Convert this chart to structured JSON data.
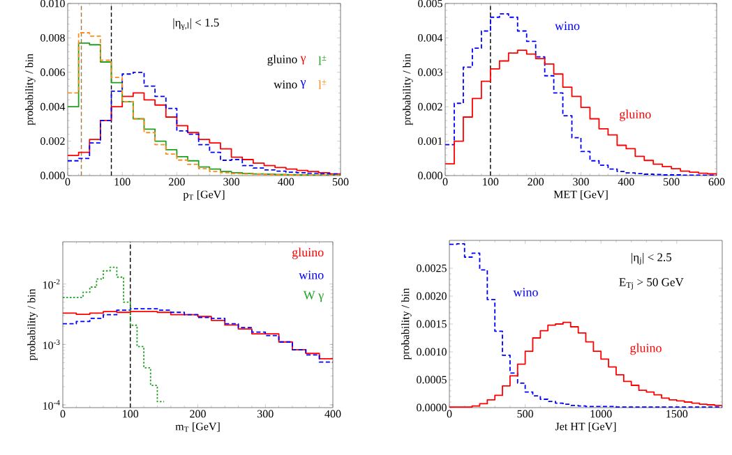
{
  "chart_data": [
    {
      "type": "histogram",
      "xlabel": "p$_{T}$ [GeV]",
      "ylabel": "probability / bin",
      "annotations": [
        "|η$_{γ,l}$| < 1.5",
        "gluino",
        "wino"
      ],
      "bins": [
        0,
        20,
        40,
        60,
        80,
        100,
        120,
        140,
        160,
        180,
        200,
        220,
        240,
        260,
        280,
        300,
        320,
        340,
        360,
        380,
        400,
        420,
        440,
        460,
        480,
        500
      ],
      "series": [
        {
          "name": "γ",
          "color": "#ff0000",
          "line_style": "solid",
          "values": [
            0.00117,
            0.00135,
            0.0021,
            0.0032,
            0.004,
            0.0046,
            0.0048,
            0.0044,
            0.0041,
            0.0034,
            0.0029,
            0.0025,
            0.0021,
            0.0019,
            0.00155,
            0.00107,
            0.00093,
            0.00072,
            0.00058,
            0.00047,
            0.00038,
            0.0003,
            0.00024,
            0.00017,
            0.0001
          ]
        },
        {
          "name": "l$^{±}$",
          "color": "#1ea01e",
          "line_style": "solid",
          "values": [
            0.004,
            0.0077,
            0.0076,
            0.0066,
            0.0054,
            0.0043,
            0.0033,
            0.0027,
            0.002,
            0.0015,
            0.0011,
            0.00086,
            0.0005,
            0.00038,
            0.00024,
            0.00017,
            0.00013,
            0.0001,
            8e-05,
            6e-05,
            5e-05,
            4e-05,
            3e-05,
            2e-05,
            2e-05
          ]
        },
        {
          "name": "γ",
          "color": "#0000ff",
          "line_style": "dashed",
          "values": [
            0.00086,
            0.001,
            0.0019,
            0.0032,
            0.0049,
            0.0059,
            0.006,
            0.0052,
            0.0046,
            0.0039,
            0.0026,
            0.0024,
            0.0018,
            0.00135,
            0.00089,
            0.00093,
            0.00058,
            0.00044,
            0.00033,
            0.00026,
            0.0002,
            0.00017,
            0.00014,
            0.00011,
            0.0001
          ]
        },
        {
          "name": "l$^{±}$",
          "color": "#ff8c1a",
          "line_style": "dashed",
          "values": [
            0.0048,
            0.0083,
            0.0081,
            0.0067,
            0.0057,
            0.0043,
            0.0033,
            0.0025,
            0.0018,
            0.00125,
            0.0009,
            0.00065,
            0.0004,
            0.00024,
            0.00017,
            0.00012,
            0.0001,
            8e-05,
            6e-05,
            5e-05,
            4e-05,
            3e-05,
            2e-05,
            2e-05,
            1e-05
          ]
        }
      ],
      "ref_lines": [
        {
          "axis": "x",
          "value": 25,
          "color": "#a07840",
          "line_style": "dashed"
        },
        {
          "axis": "x",
          "value": 80,
          "color": "#000000",
          "line_style": "dashed"
        }
      ],
      "xlim": [
        0,
        500
      ],
      "ylim": [
        0,
        0.01
      ],
      "xticks": [
        0,
        100,
        200,
        300,
        400,
        500
      ],
      "yticks": [
        {
          "value": 0,
          "label": "0.000"
        },
        {
          "value": 0.002,
          "label": "0.002"
        },
        {
          "value": 0.004,
          "label": "0.004"
        },
        {
          "value": 0.006,
          "label": "0.006"
        },
        {
          "value": 0.008,
          "label": "0.008"
        },
        {
          "value": 0.01,
          "label": "0.010"
        }
      ]
    },
    {
      "type": "histogram",
      "xlabel": "MET [GeV]",
      "ylabel": "probability / bin",
      "bins": [
        0,
        20,
        40,
        60,
        80,
        100,
        120,
        140,
        160,
        180,
        200,
        220,
        240,
        260,
        280,
        300,
        320,
        340,
        360,
        380,
        400,
        420,
        440,
        460,
        480,
        500,
        520,
        540,
        560,
        580,
        600
      ],
      "series": [
        {
          "name": "wino",
          "color": "#0000ff",
          "line_style": "dashed",
          "values": [
            0.0009,
            0.0021,
            0.00315,
            0.0037,
            0.0042,
            0.0046,
            0.0047,
            0.0046,
            0.0042,
            0.0039,
            0.00345,
            0.0029,
            0.0024,
            0.00174,
            0.0011,
            0.0007,
            0.00043,
            0.0003,
            0.00019,
            0.00012,
            8e-05,
            6e-05,
            4e-05,
            3e-05,
            2e-05,
            2e-05,
            1e-05,
            1e-05,
            1e-05,
            1e-05
          ]
        },
        {
          "name": "gluino",
          "color": "#ff0000",
          "line_style": "solid",
          "values": [
            0.00034,
            0.001,
            0.0017,
            0.00224,
            0.00274,
            0.0031,
            0.00333,
            0.00356,
            0.00364,
            0.00353,
            0.0034,
            0.00324,
            0.00295,
            0.00257,
            0.0023,
            0.00198,
            0.00165,
            0.00136,
            0.00118,
            0.00088,
            0.00078,
            0.00056,
            0.00044,
            0.00033,
            0.00026,
            0.0002,
            0.00013,
            0.0001,
            7e-05,
            5e-05
          ]
        }
      ],
      "ref_lines": [
        {
          "axis": "x",
          "value": 100,
          "color": "#000000",
          "line_style": "dashed"
        }
      ],
      "xlim": [
        0,
        600
      ],
      "ylim": [
        0,
        0.005
      ],
      "xticks": [
        0,
        100,
        200,
        300,
        400,
        500,
        600
      ],
      "yticks": [
        {
          "value": 0,
          "label": "0.000"
        },
        {
          "value": 0.001,
          "label": "0.001"
        },
        {
          "value": 0.002,
          "label": "0.002"
        },
        {
          "value": 0.003,
          "label": "0.003"
        },
        {
          "value": 0.004,
          "label": "0.004"
        },
        {
          "value": 0.005,
          "label": "0.005"
        }
      ]
    },
    {
      "type": "histogram",
      "xlabel": "m$_{T}$ [GeV]",
      "ylabel": "probability / bin",
      "log": true,
      "bins": [
        0,
        20,
        40,
        60,
        80,
        100,
        120,
        140,
        160,
        180,
        200,
        220,
        240,
        260,
        280,
        300,
        320,
        340,
        360,
        380,
        400
      ],
      "series": [
        {
          "name": "gluino",
          "color": "#ff0000",
          "line_style": "solid",
          "values": [
            0.0033,
            0.00315,
            0.0033,
            0.0035,
            0.0034,
            0.0035,
            0.0035,
            0.0034,
            0.0031,
            0.0031,
            0.0029,
            0.0025,
            0.0021,
            0.0018,
            0.0015,
            0.0015,
            0.0011,
            0.00082,
            0.00071,
            0.00058
          ]
        },
        {
          "name": "wino",
          "color": "#0000ff",
          "line_style": "dashed",
          "values": [
            0.0022,
            0.0024,
            0.0027,
            0.0031,
            0.0037,
            0.0039,
            0.0039,
            0.0037,
            0.0034,
            0.0031,
            0.0028,
            0.0027,
            0.0022,
            0.0019,
            0.0016,
            0.0014,
            0.0011,
            0.00082,
            0.00067,
            0.00051
          ]
        },
        {
          "name": "W γ",
          "color": "#1ea01e",
          "line_style": "dotted",
          "bins": [
            0,
            10,
            20,
            30,
            40,
            50,
            60,
            70,
            80,
            90,
            100,
            110,
            120,
            130,
            140,
            150
          ],
          "values": [
            0.006,
            0.006,
            0.006,
            0.0073,
            0.0089,
            0.0121,
            0.0165,
            0.0189,
            0.013,
            0.005,
            0.00208,
            0.00092,
            0.00041,
            0.00021,
            0.000113
          ]
        }
      ],
      "ref_lines": [
        {
          "axis": "x",
          "value": 100,
          "color": "#000000",
          "line_style": "dashed"
        }
      ],
      "xlim": [
        0,
        400
      ],
      "ylim": [
        9e-05,
        0.05
      ],
      "xticks": [
        0,
        100,
        200,
        300,
        400
      ],
      "yticks": [
        {
          "value": 0.0001,
          "label": "10$^{-4}$"
        },
        {
          "value": 0.001,
          "label": "10$^{-3}$"
        },
        {
          "value": 0.01,
          "label": "10$^{-2}$"
        }
      ]
    },
    {
      "type": "histogram",
      "xlabel": "Jet HT [GeV]",
      "ylabel": "probability / bin",
      "annotations": [
        "|η$_{j}$| < 2.5",
        "E$_{Tj}$ > 50 GeV"
      ],
      "bins": [
        0,
        50,
        100,
        150,
        200,
        250,
        300,
        350,
        400,
        450,
        500,
        550,
        600,
        650,
        700,
        750,
        800,
        850,
        900,
        950,
        1000,
        1050,
        1100,
        1150,
        1200,
        1250,
        1300,
        1350,
        1400,
        1450,
        1500,
        1550,
        1600,
        1650,
        1700,
        1750,
        1800
      ],
      "series": [
        {
          "name": "wino",
          "color": "#0000ff",
          "line_style": "dashed",
          "values": [
            0.00293,
            0.00294,
            0.0027,
            0.00277,
            0.00247,
            0.00194,
            0.00137,
            0.00094,
            0.00062,
            0.00044,
            0.00028,
            0.00021,
            0.00015,
            0.00011,
            8e-05,
            6e-05,
            4e-05,
            3e-05,
            2e-05,
            2e-05,
            2e-05,
            2e-05,
            1e-05,
            1e-05,
            1e-05,
            1e-05,
            1e-05,
            1e-05,
            1e-05,
            1e-05,
            1e-05,
            1e-05,
            1e-05,
            1e-05,
            1e-05,
            1e-05
          ]
        },
        {
          "name": "gluino",
          "color": "#ff0000",
          "line_style": "solid",
          "values": [
            1e-05,
            1e-05,
            1e-05,
            3e-05,
            7e-05,
            0.00014,
            0.00022,
            0.00039,
            0.00057,
            0.00078,
            0.00101,
            0.00125,
            0.00138,
            0.00148,
            0.0015,
            0.00153,
            0.00145,
            0.00134,
            0.00118,
            0.00101,
            0.00087,
            0.00073,
            0.00059,
            0.00047,
            0.0004,
            0.00031,
            0.00028,
            0.00023,
            0.00017,
            0.00014,
            0.00012,
            0.0001,
            8e-05,
            6e-05,
            5e-05,
            4e-05
          ]
        }
      ],
      "xlim": [
        0,
        1800
      ],
      "ylim": [
        0,
        0.003
      ],
      "xticks": [
        0,
        500,
        1000,
        1500
      ],
      "yticks": [
        {
          "value": 0,
          "label": "0.0000"
        },
        {
          "value": 0.0005,
          "label": "0.0005"
        },
        {
          "value": 0.001,
          "label": "0.0010"
        },
        {
          "value": 0.0015,
          "label": "0.0015"
        },
        {
          "value": 0.002,
          "label": "0.0020"
        },
        {
          "value": 0.0025,
          "label": "0.0025"
        }
      ]
    }
  ]
}
